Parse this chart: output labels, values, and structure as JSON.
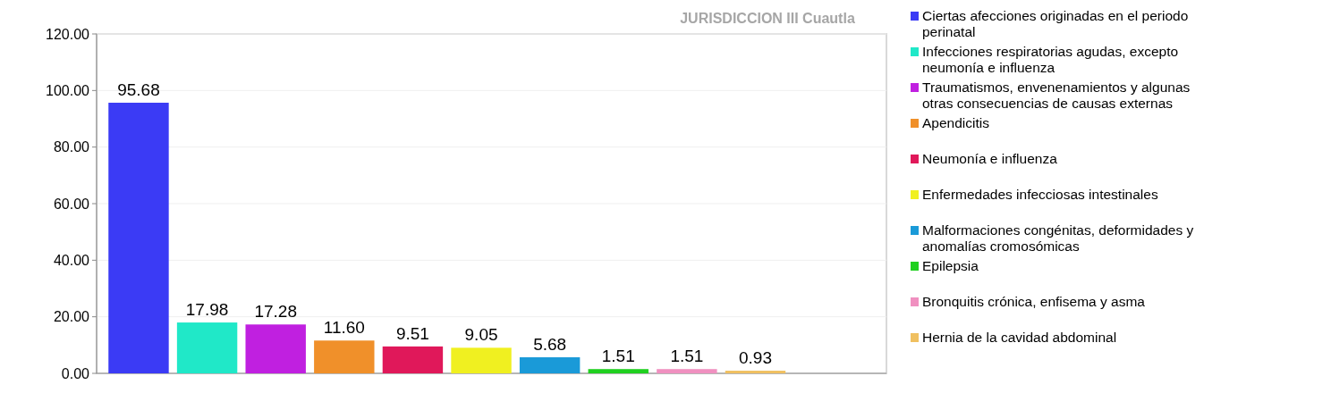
{
  "chart_data": {
    "type": "bar",
    "title": "JURISDICCION III Cuautla",
    "categories": [
      null
    ],
    "series": [
      {
        "name": "Ciertas afecciones originadas en el periodo perinatal",
        "color": "#3b3bf5",
        "values": [
          95.68
        ],
        "value_labels": [
          "95.68"
        ]
      },
      {
        "name": "Infecciones respiratorias agudas, excepto neumonía e influenza",
        "color": "#20e8c8",
        "values": [
          17.98
        ],
        "value_labels": [
          "17.98"
        ]
      },
      {
        "name": "Traumatismos, envenenamientos y algunas otras consecuencias de causas externas",
        "color": "#c020e0",
        "values": [
          17.28
        ],
        "value_labels": [
          "17.28"
        ]
      },
      {
        "name": "Apendicitis",
        "color": "#f0902a",
        "values": [
          11.6
        ],
        "value_labels": [
          "11.60"
        ]
      },
      {
        "name": "Neumonía e influenza",
        "color": "#e0185a",
        "values": [
          9.51
        ],
        "value_labels": [
          "9.51"
        ]
      },
      {
        "name": "Enfermedades infecciosas intestinales",
        "color": "#f0f020",
        "values": [
          9.05
        ],
        "value_labels": [
          "9.05"
        ]
      },
      {
        "name": "Malformaciones congénitas, deformidades y anomalías cromosómicas",
        "color": "#1a9ad8",
        "values": [
          5.68
        ],
        "value_labels": [
          "5.68"
        ]
      },
      {
        "name": "Epilepsia",
        "color": "#20d020",
        "values": [
          1.51
        ],
        "value_labels": [
          "1.51"
        ]
      },
      {
        "name": "Bronquitis crónica, enfisema y asma",
        "color": "#f090c0",
        "values": [
          1.51
        ],
        "value_labels": [
          "1.51"
        ]
      },
      {
        "name": "Hernia de la cavidad abdominal",
        "color": "#f0c060",
        "values": [
          0.93
        ],
        "value_labels": [
          "0.93"
        ]
      }
    ],
    "ylim": [
      0,
      120
    ],
    "yticks": [
      {
        "value": 0,
        "label": "0.00"
      },
      {
        "value": 20,
        "label": "20.00"
      },
      {
        "value": 40,
        "label": "40.00"
      },
      {
        "value": 60,
        "label": "60.00"
      },
      {
        "value": 80,
        "label": "80.00"
      },
      {
        "value": 100,
        "label": "100.00"
      },
      {
        "value": 120,
        "label": "120.00"
      }
    ],
    "grid": "y",
    "legend": "right",
    "tick_labels": "y"
  }
}
